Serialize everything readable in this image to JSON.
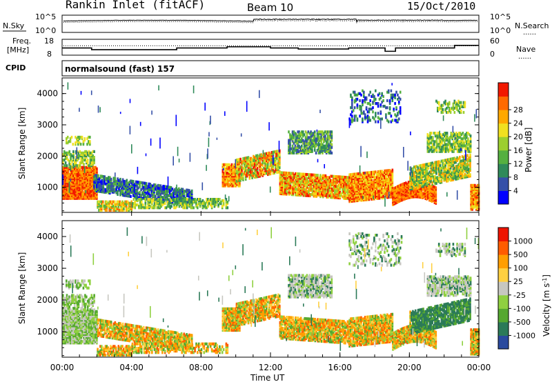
{
  "header": {
    "station": "Rankin Inlet (fitACF)",
    "beam": "Beam 10",
    "date": "15/Oct/2010"
  },
  "side_labels": {
    "nsky": "N.Sky",
    "nsearch": "N.Search",
    "freq_line1": "Freq.",
    "freq_line2": "[MHz]",
    "nave": "Nave",
    "cpid": "CPID",
    "dots": "......"
  },
  "cpid_text": "normalsound (fast) 157",
  "chart_data": [
    {
      "type": "line",
      "name": "noise",
      "series": [
        {
          "name": "N.Sky",
          "values": "stepped noise trace"
        },
        {
          "name": "N.Search",
          "values": "dotted noise trace"
        }
      ],
      "y_ticks_left": [
        "10^5",
        "10^0"
      ],
      "y_ticks_right": [
        "10^5",
        "10^0"
      ],
      "yscale": "log",
      "ylim": [
        1,
        100000
      ]
    },
    {
      "type": "line",
      "name": "frequency",
      "y_ticks_left": [
        "18",
        "8"
      ],
      "y_ticks_right": [
        "60",
        "0"
      ],
      "freq_mhz": {
        "x": [
          0,
          1.6,
          1.7,
          6.5,
          6.6,
          9.4,
          9.5,
          11.8,
          12.0,
          13.5,
          13.6,
          16.3,
          16.5,
          18.5,
          18.6,
          19.1,
          19.2,
          22.5,
          22.6,
          24
        ],
        "y": [
          12.5,
          12.5,
          11.3,
          11.3,
          12.5,
          12.5,
          13.3,
          13.3,
          12.5,
          12.5,
          11.8,
          11.8,
          12.5,
          12.5,
          10.2,
          10.2,
          12.5,
          12.5,
          14.3,
          14.3
        ]
      },
      "nave_level": 36
    },
    {
      "type": "heatmap",
      "name": "power",
      "ylabel": "Slant Range [km]",
      "y_ticks": [
        "1000",
        "2000",
        "3000",
        "4000"
      ],
      "ylim": [
        200,
        4500
      ],
      "colorbar_label": "Power [dB]",
      "colorbar_ticks": [
        "4",
        "8",
        "12",
        "16",
        "20",
        "24",
        "28"
      ],
      "colors": [
        "#0000ff",
        "#3550a8",
        "#2f8a5a",
        "#55b040",
        "#9ccf2f",
        "#f1e020",
        "#ffa800",
        "#ff6a00",
        "#f21800"
      ]
    },
    {
      "type": "heatmap",
      "name": "velocity",
      "ylabel": "Slant Range [km]",
      "y_ticks": [
        "1000",
        "2000",
        "3000",
        "4000"
      ],
      "ylim": [
        200,
        4500
      ],
      "colorbar_label": "Velocity [m s^-1]",
      "colorbar_ticks": [
        "1000",
        "500",
        "100",
        "25",
        "-25",
        "-100",
        "-500",
        "-1000"
      ],
      "colors": [
        "#2a4a9e",
        "#2b7a58",
        "#55a830",
        "#8fd040",
        "#c7c7c0",
        "#ffd040",
        "#ff9e00",
        "#ff5c00",
        "#ee1400"
      ]
    }
  ],
  "xaxis": {
    "label": "Time UT",
    "ticks": [
      "00:00",
      "04:00",
      "08:00",
      "12:00",
      "16:00",
      "20:00",
      "00:00"
    ],
    "range_hours": [
      0,
      24
    ]
  }
}
